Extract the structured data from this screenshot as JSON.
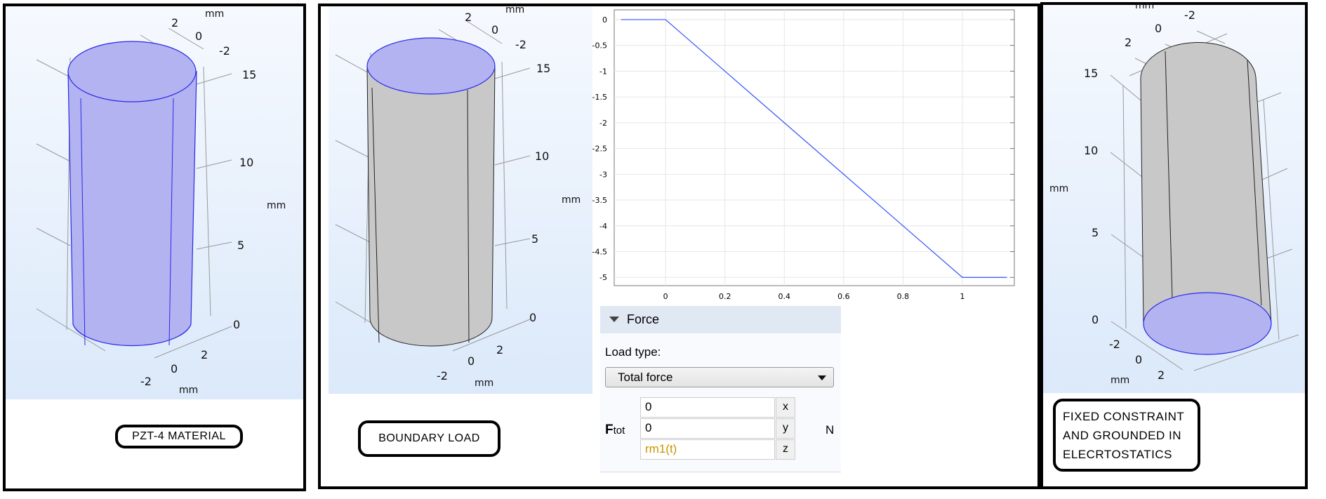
{
  "panels": [
    {
      "label": "PZT-4 MATERIAL",
      "axes": {
        "top": [
          "2",
          "0",
          "-2"
        ],
        "top_unit": "mm",
        "z": [
          "15",
          "10",
          "5",
          "0"
        ],
        "z_unit": "mm",
        "bottom": [
          "2",
          "0",
          "-2"
        ],
        "bottom_unit": "mm"
      },
      "highlight": "whole-domain"
    },
    {
      "label": "BOUNDARY LOAD",
      "axes": {
        "top": [
          "2",
          "0",
          "-2"
        ],
        "top_unit": "mm",
        "z": [
          "15",
          "10",
          "5",
          "0"
        ],
        "z_unit": "mm",
        "bottom": [
          "2",
          "0",
          "-2"
        ],
        "bottom_unit": "mm"
      },
      "highlight": "top-face"
    },
    {
      "label_lines": [
        "FIXED CONSTRAINT",
        "AND GROUNDED IN",
        "ELECRTOSTATICS"
      ],
      "axes": {
        "top": [
          "2",
          "0",
          "-2"
        ],
        "top_unit": "mm",
        "z": [
          "15",
          "10",
          "5",
          "0"
        ],
        "z_unit": "mm",
        "bottom": [
          "-2",
          "0",
          "2"
        ],
        "bottom_unit": "mm"
      },
      "highlight": "bottom-face"
    }
  ],
  "colors": {
    "selection": "#b3b3f2",
    "selection_edge": "#2a2ae6",
    "domain": "#c8c8c8",
    "curve": "#3050ff"
  },
  "chart_data": {
    "type": "line",
    "x": [
      -0.15,
      0,
      1,
      1.15
    ],
    "y": [
      0,
      0,
      -5,
      -5
    ],
    "xlim": [
      -0.173,
      1.175
    ],
    "ylim": [
      -5.16,
      0.19
    ],
    "xticks": [
      "0",
      "0.2",
      "0.4",
      "0.6",
      "0.8",
      "1"
    ],
    "yticks": [
      "0",
      "-0.5",
      "-1",
      "-1.5",
      "-2",
      "-2.5",
      "-3",
      "-3.5",
      "-4",
      "-4.5",
      "-5"
    ],
    "grid": true,
    "title": "",
    "xlabel": "",
    "ylabel": ""
  },
  "force_panel": {
    "section_title": "Force",
    "load_type_label": "Load type:",
    "load_type_value": "Total force",
    "vector_label": "F",
    "vector_subscript": "tot",
    "unit": "N",
    "components": [
      {
        "value": "0",
        "axis": "x"
      },
      {
        "value": "0",
        "axis": "y"
      },
      {
        "value": "rm1(t)",
        "axis": "z"
      }
    ]
  }
}
